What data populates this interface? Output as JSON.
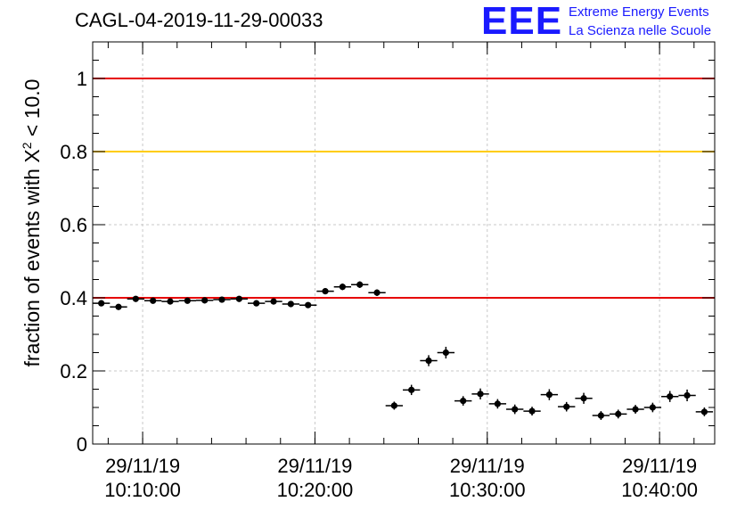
{
  "title": "CAGL-04-2019-11-29-00033",
  "logo": {
    "mark": "EEE",
    "line1": "Extreme Energy Events",
    "line2": "La Scienza nelle Scuole"
  },
  "chart_data": {
    "type": "scatter",
    "ylabel_prefix": "fraction of events with X",
    "ylabel_sup": "2",
    "ylabel_suffix": " < 10.0",
    "ylim": [
      0,
      1.1
    ],
    "yticks": [
      0,
      0.2,
      0.4,
      0.6,
      0.8,
      1
    ],
    "ytick_labels": [
      "0",
      "0.2",
      "0.4",
      "0.6",
      "0.8",
      "1"
    ],
    "xlim_minutes": [
      4.5,
      40.6
    ],
    "xticks_minutes": [
      7.4,
      17.4,
      27.4,
      37.4
    ],
    "xtick_labels": [
      [
        "29/11/19",
        "10:10:00"
      ],
      [
        "29/11/19",
        "10:20:00"
      ],
      [
        "29/11/19",
        "10:30:00"
      ],
      [
        "29/11/19",
        "10:40:00"
      ]
    ],
    "grid": true,
    "reference_lines": [
      {
        "y": 1.0,
        "color": "#e60000"
      },
      {
        "y": 0.8,
        "color": "#ffcc00"
      },
      {
        "y": 0.4,
        "color": "#e60000"
      }
    ],
    "bin_half_width": 0.5,
    "x": [
      5,
      6,
      7,
      8,
      9,
      10,
      11,
      12,
      13,
      14,
      15,
      16,
      17,
      18,
      19,
      20,
      21,
      22,
      23,
      24,
      25,
      26,
      27,
      28,
      29,
      30,
      31,
      32,
      33,
      34,
      35,
      36,
      37,
      38,
      39,
      40
    ],
    "y": [
      0.385,
      0.375,
      0.397,
      0.392,
      0.39,
      0.392,
      0.393,
      0.395,
      0.397,
      0.385,
      0.39,
      0.383,
      0.38,
      0.418,
      0.43,
      0.436,
      0.414,
      0.105,
      0.148,
      0.228,
      0.25,
      0.118,
      0.137,
      0.11,
      0.095,
      0.09,
      0.135,
      0.102,
      0.125,
      0.078,
      0.082,
      0.095,
      0.1,
      0.13,
      0.133,
      0.088
    ],
    "yerr": [
      0.008,
      0.008,
      0.008,
      0.008,
      0.008,
      0.008,
      0.008,
      0.008,
      0.008,
      0.008,
      0.008,
      0.008,
      0.008,
      0.008,
      0.009,
      0.009,
      0.009,
      0.011,
      0.014,
      0.015,
      0.016,
      0.013,
      0.015,
      0.013,
      0.013,
      0.012,
      0.015,
      0.013,
      0.015,
      0.012,
      0.012,
      0.012,
      0.013,
      0.015,
      0.016,
      0.012
    ]
  }
}
